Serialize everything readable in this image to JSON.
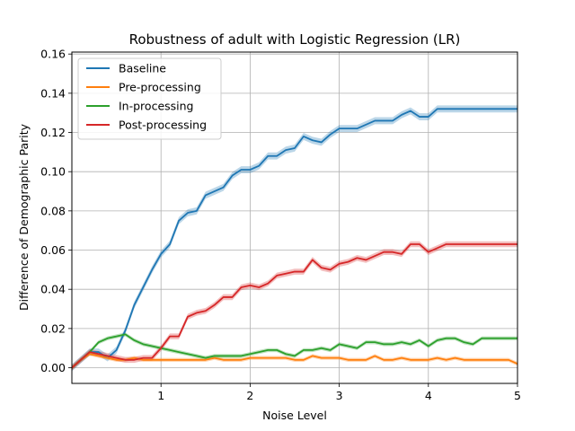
{
  "chart_data": {
    "type": "line",
    "title": "Robustness of adult with Logistic Regression (LR)",
    "xlabel": "Noise Level",
    "ylabel": "Difference of Demographic Parity",
    "xlim": [
      0.0,
      5.0
    ],
    "ylim": [
      -0.008,
      0.161
    ],
    "xticks": [
      1,
      2,
      3,
      4,
      5
    ],
    "xtick_labels": [
      "1",
      "2",
      "3",
      "4",
      "5"
    ],
    "yticks": [
      0.0,
      0.02,
      0.04,
      0.06,
      0.08,
      0.1,
      0.12,
      0.14,
      0.16
    ],
    "ytick_labels": [
      "0.00",
      "0.02",
      "0.04",
      "0.06",
      "0.08",
      "0.10",
      "0.12",
      "0.14",
      "0.16"
    ],
    "grid": true,
    "legend_position": "top-left",
    "x": [
      0.0,
      0.1,
      0.2,
      0.3,
      0.4,
      0.5,
      0.6,
      0.7,
      0.8,
      0.9,
      1.0,
      1.1,
      1.2,
      1.3,
      1.4,
      1.5,
      1.6,
      1.7,
      1.8,
      1.9,
      2.0,
      2.1,
      2.2,
      2.3,
      2.4,
      2.5,
      2.6,
      2.7,
      2.8,
      2.9,
      3.0,
      3.1,
      3.2,
      3.3,
      3.4,
      3.5,
      3.6,
      3.7,
      3.8,
      3.9,
      4.0,
      4.1,
      4.2,
      4.3,
      4.4,
      4.5,
      4.6,
      4.7,
      4.8,
      4.9,
      5.0
    ],
    "series": [
      {
        "name": "Baseline",
        "color": "#1f77b4",
        "values": [
          0.0,
          0.004,
          0.008,
          0.008,
          0.005,
          0.009,
          0.019,
          0.032,
          0.041,
          0.05,
          0.058,
          0.063,
          0.075,
          0.079,
          0.08,
          0.088,
          0.09,
          0.092,
          0.098,
          0.101,
          0.101,
          0.103,
          0.108,
          0.108,
          0.111,
          0.112,
          0.118,
          0.116,
          0.115,
          0.119,
          0.122,
          0.122,
          0.122,
          0.124,
          0.126,
          0.126,
          0.126,
          0.129,
          0.131,
          0.128,
          0.128,
          0.132,
          0.132,
          0.132,
          0.132,
          0.132,
          0.132,
          0.132,
          0.132,
          0.132,
          0.132
        ],
        "band": 0.0018
      },
      {
        "name": "Pre-processing",
        "color": "#ff7f0e",
        "values": [
          0.0,
          0.004,
          0.007,
          0.006,
          0.005,
          0.004,
          0.004,
          0.005,
          0.004,
          0.004,
          0.004,
          0.004,
          0.004,
          0.004,
          0.004,
          0.004,
          0.005,
          0.004,
          0.004,
          0.004,
          0.005,
          0.005,
          0.005,
          0.005,
          0.005,
          0.004,
          0.004,
          0.006,
          0.005,
          0.005,
          0.005,
          0.004,
          0.004,
          0.004,
          0.006,
          0.004,
          0.004,
          0.005,
          0.004,
          0.004,
          0.004,
          0.005,
          0.004,
          0.005,
          0.004,
          0.004,
          0.004,
          0.004,
          0.004,
          0.004,
          0.002
        ],
        "band": 0.001
      },
      {
        "name": "In-processing",
        "color": "#2ca02c",
        "values": [
          0.0,
          0.004,
          0.008,
          0.013,
          0.015,
          0.016,
          0.017,
          0.014,
          0.012,
          0.011,
          0.01,
          0.009,
          0.008,
          0.007,
          0.006,
          0.005,
          0.006,
          0.006,
          0.006,
          0.006,
          0.007,
          0.008,
          0.009,
          0.009,
          0.007,
          0.006,
          0.009,
          0.009,
          0.01,
          0.009,
          0.012,
          0.011,
          0.01,
          0.013,
          0.013,
          0.012,
          0.012,
          0.013,
          0.012,
          0.014,
          0.011,
          0.014,
          0.015,
          0.015,
          0.013,
          0.012,
          0.015,
          0.015,
          0.015,
          0.015,
          0.015
        ],
        "band": 0.001
      },
      {
        "name": "Post-processing",
        "color": "#d62728",
        "values": [
          0.0,
          0.004,
          0.008,
          0.007,
          0.006,
          0.005,
          0.004,
          0.004,
          0.005,
          0.005,
          0.01,
          0.016,
          0.016,
          0.026,
          0.028,
          0.029,
          0.032,
          0.036,
          0.036,
          0.041,
          0.042,
          0.041,
          0.043,
          0.047,
          0.048,
          0.049,
          0.049,
          0.055,
          0.051,
          0.05,
          0.053,
          0.054,
          0.056,
          0.055,
          0.057,
          0.059,
          0.059,
          0.058,
          0.063,
          0.063,
          0.059,
          0.061,
          0.063,
          0.063,
          0.063,
          0.063,
          0.063,
          0.063,
          0.063,
          0.063,
          0.063
        ],
        "band": 0.0015
      }
    ]
  }
}
